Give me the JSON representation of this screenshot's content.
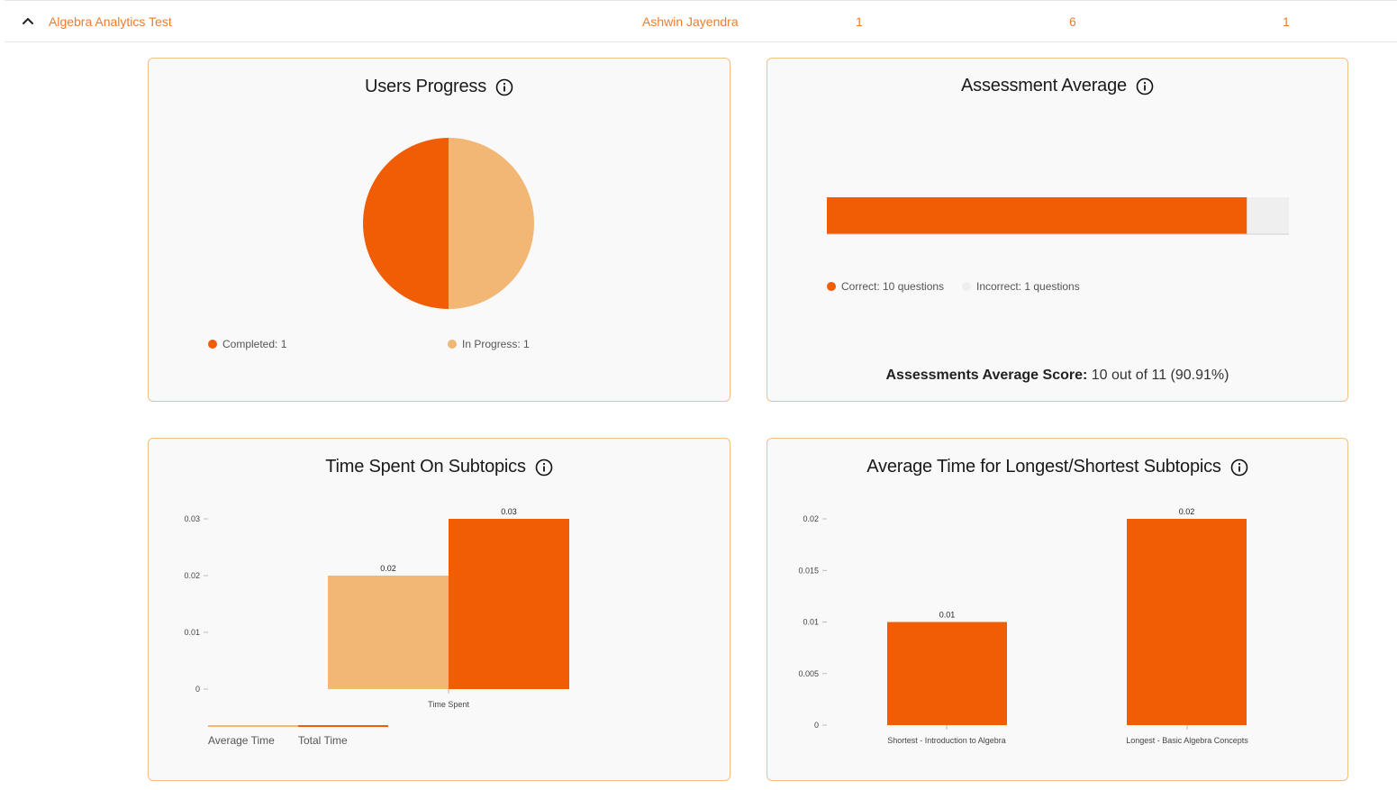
{
  "row": {
    "title": "Algebra Analytics Test",
    "user": "Ashwin Jayendra",
    "col1": "1",
    "col2": "6",
    "col3": "1"
  },
  "colors": {
    "accent": "#f05d05",
    "accent_light": "#f2b774",
    "track": "#efefef",
    "header_text": "#f07c2a"
  },
  "chart_data": [
    {
      "type": "pie",
      "title": "Users Progress",
      "categories": [
        "Completed",
        "In Progress"
      ],
      "values": [
        1,
        1
      ],
      "legend": [
        "Completed: 1",
        "In Progress: 1"
      ]
    },
    {
      "type": "bar",
      "orientation": "horizontal-stacked",
      "title": "Assessment Average",
      "categories": [
        "Correct",
        "Incorrect"
      ],
      "values": [
        10,
        1
      ],
      "legend": [
        "Correct: 10 questions",
        "Incorrect: 1 questions"
      ],
      "score_label": "Assessments Average Score:",
      "score_value": "10 out of 11 (90.91%)"
    },
    {
      "type": "bar",
      "title": "Time Spent On Subtopics",
      "categories": [
        "Time Spent"
      ],
      "series": [
        {
          "name": "Average Time",
          "values": [
            0.02
          ]
        },
        {
          "name": "Total Time",
          "values": [
            0.03
          ]
        }
      ],
      "yticks": [
        "0",
        "0.01",
        "0.02",
        "0.03"
      ],
      "ylim": [
        0,
        0.03
      ],
      "data_labels": [
        "0.02",
        "0.03"
      ]
    },
    {
      "type": "bar",
      "title": "Average Time for Longest/Shortest Subtopics",
      "categories": [
        "Shortest - Introduction to Algebra",
        "Longest - Basic Algebra Concepts"
      ],
      "values": [
        0.01,
        0.02
      ],
      "yticks": [
        "0",
        "0.005",
        "0.01",
        "0.015",
        "0.02"
      ],
      "ylim": [
        0,
        0.02
      ],
      "data_labels": [
        "0.01",
        "0.02"
      ]
    }
  ]
}
